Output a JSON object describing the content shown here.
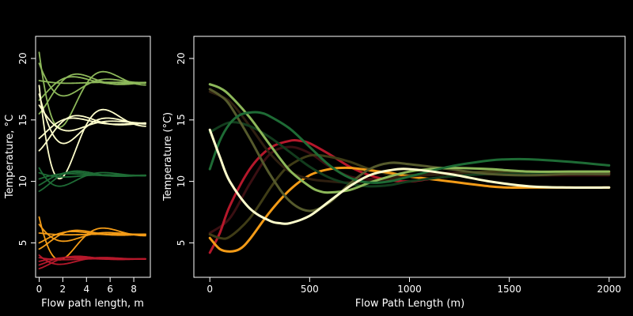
{
  "chart_data": [
    {
      "type": "line",
      "xlabel": "Flow path length, m",
      "ylabel": "Temperature, °C",
      "xlim": [
        -0.3,
        9.4
      ],
      "ylim": [
        2.2,
        21.8
      ],
      "xticks": [
        0,
        2,
        4,
        6,
        8
      ],
      "yticks": [
        5,
        10,
        15,
        20
      ],
      "grid": false,
      "series_groups": [
        {
          "color": "#8DB85A",
          "line_count": 5,
          "start_values": [
            15.5,
            16.6,
            18.2,
            19.6,
            20.5
          ],
          "phase_shifts": [
            0,
            1.0,
            2.1,
            3.2,
            4.2
          ],
          "final_value": 18.05
        },
        {
          "color": "#FFFFCC",
          "line_count": 5,
          "start_values": [
            12.5,
            13.5,
            16.2,
            17.1,
            17.8
          ],
          "phase_shifts": [
            0,
            1.0,
            2.1,
            3.2,
            4.2
          ],
          "final_value": 14.75
        },
        {
          "color": "#1E6B35",
          "line_count": 5,
          "start_values": [
            9.2,
            9.7,
            10.2,
            10.7,
            11.1
          ],
          "phase_shifts": [
            0,
            1.0,
            2.1,
            3.2,
            4.2
          ],
          "final_value": 10.5
        },
        {
          "color": "#F39B17",
          "line_count": 5,
          "start_values": [
            4.5,
            5.0,
            5.8,
            6.5,
            7.1
          ],
          "phase_shifts": [
            0,
            1.0,
            2.1,
            3.2,
            4.2
          ],
          "final_value": 5.7
        },
        {
          "color": "#B5182B",
          "line_count": 5,
          "start_values": [
            2.9,
            3.2,
            3.5,
            3.8,
            4.0
          ],
          "phase_shifts": [
            0,
            1.0,
            2.1,
            3.2,
            4.2
          ],
          "final_value": 3.7
        }
      ]
    },
    {
      "type": "line",
      "xlabel": "Flow Path Length (m)",
      "ylabel": "Temperature (°C)",
      "xlim": [
        -80,
        2080
      ],
      "ylim": [
        2.2,
        21.8
      ],
      "xticks": [
        0,
        500,
        1000,
        1500,
        2000
      ],
      "yticks": [
        5,
        10,
        15,
        20
      ],
      "grid": false,
      "series": [
        {
          "color": "#3A0F12",
          "x": [
            0,
            100,
            200,
            300,
            400,
            500,
            600,
            700,
            800,
            900,
            1000,
            1200,
            1400,
            1600,
            1800,
            2000
          ],
          "y": [
            5.8,
            7.0,
            9.8,
            12.2,
            12.8,
            12.3,
            11.2,
            10.4,
            10.2,
            10.3,
            10.5,
            10.7,
            10.6,
            10.5,
            10.5,
            10.5
          ]
        },
        {
          "color": "#B5182B",
          "x": [
            0,
            50,
            100,
            200,
            300,
            400,
            450,
            500,
            600,
            700,
            800,
            900,
            1000,
            1100,
            1200,
            1400,
            1600,
            1800,
            2000
          ],
          "y": [
            4.2,
            5.8,
            8.0,
            11.0,
            12.7,
            13.3,
            13.3,
            13.1,
            12.2,
            11.2,
            10.5,
            10.1,
            10.0,
            10.2,
            10.4,
            10.7,
            10.8,
            10.7,
            10.7
          ]
        },
        {
          "color": "#3F3C16",
          "x": [
            0,
            50,
            100,
            200,
            300,
            350,
            400,
            500,
            600,
            700,
            800,
            900,
            1000,
            1200,
            1400,
            1600,
            1800,
            2000
          ],
          "y": [
            5.7,
            5.4,
            5.5,
            7.0,
            9.4,
            10.5,
            11.3,
            12.1,
            12.0,
            11.6,
            11.0,
            10.6,
            10.5,
            10.6,
            10.8,
            10.7,
            10.6,
            10.6
          ]
        },
        {
          "color": "#F39B17",
          "x": [
            0,
            50,
            100,
            150,
            200,
            300,
            400,
            500,
            600,
            700,
            800,
            900,
            1000,
            1100,
            1200,
            1400,
            1500,
            1600,
            1800,
            2000
          ],
          "y": [
            5.4,
            4.5,
            4.3,
            4.5,
            5.3,
            7.5,
            9.3,
            10.5,
            11.0,
            11.1,
            10.9,
            10.7,
            10.4,
            10.2,
            10.0,
            9.6,
            9.5,
            9.5,
            9.5,
            9.5
          ]
        },
        {
          "color": "#2E1F10",
          "x": [
            0,
            100,
            200,
            300,
            400,
            500,
            600,
            700,
            800,
            1000,
            1200,
            1400,
            1600,
            1800,
            2000
          ],
          "y": [
            17.3,
            16.5,
            14.5,
            12.3,
            10.8,
            10.2,
            10.0,
            9.9,
            10.0,
            10.4,
            10.6,
            10.6,
            10.6,
            10.6,
            10.6
          ]
        },
        {
          "color": "#123C1D",
          "x": [
            0,
            100,
            200,
            300,
            400,
            500,
            600,
            700,
            800,
            900,
            1000,
            1200,
            1400,
            1600,
            1800,
            2000
          ],
          "y": [
            14.0,
            14.8,
            14.5,
            13.6,
            12.4,
            11.2,
            10.3,
            9.8,
            9.6,
            9.7,
            10.0,
            10.4,
            10.6,
            10.6,
            10.6,
            10.6
          ]
        },
        {
          "color": "#555A2C",
          "x": [
            0,
            50,
            100,
            200,
            300,
            400,
            500,
            600,
            700,
            800,
            900,
            1000,
            1200,
            1400,
            1600,
            1800,
            2000
          ],
          "y": [
            17.5,
            17.0,
            16.2,
            13.5,
            10.6,
            8.4,
            7.6,
            8.3,
            9.8,
            11.0,
            11.5,
            11.4,
            11.0,
            10.6,
            10.5,
            10.6,
            10.6
          ]
        },
        {
          "color": "#8DB85A",
          "x": [
            0,
            50,
            100,
            200,
            300,
            400,
            500,
            550,
            600,
            700,
            800,
            900,
            1000,
            1100,
            1200,
            1400,
            1600,
            1800,
            2000
          ],
          "y": [
            17.9,
            17.6,
            17.0,
            15.2,
            13.0,
            10.9,
            9.6,
            9.2,
            9.1,
            9.3,
            9.9,
            10.4,
            10.8,
            11.0,
            11.1,
            11.0,
            10.8,
            10.8,
            10.8
          ]
        },
        {
          "color": "#1E6B35",
          "x": [
            0,
            50,
            100,
            150,
            200,
            250,
            300,
            400,
            500,
            600,
            700,
            800,
            900,
            1000,
            1200,
            1400,
            1500,
            1600,
            1800,
            2000
          ],
          "y": [
            11.0,
            13.3,
            14.7,
            15.4,
            15.6,
            15.6,
            15.3,
            14.3,
            12.8,
            11.3,
            10.3,
            9.9,
            10.0,
            10.4,
            11.2,
            11.7,
            11.8,
            11.8,
            11.6,
            11.3
          ]
        },
        {
          "color": "#FFFFCC",
          "x": [
            0,
            50,
            100,
            200,
            300,
            350,
            400,
            500,
            600,
            700,
            800,
            900,
            1000,
            1200,
            1400,
            1600,
            1800,
            2000
          ],
          "y": [
            14.2,
            12.0,
            10.0,
            7.8,
            6.8,
            6.6,
            6.6,
            7.2,
            8.4,
            9.6,
            10.5,
            10.9,
            11.0,
            10.6,
            10.0,
            9.6,
            9.5,
            9.5
          ]
        }
      ]
    }
  ]
}
